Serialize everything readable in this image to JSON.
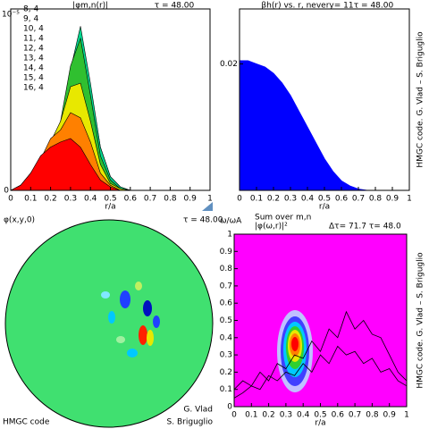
{
  "chart_data": [
    {
      "type": "area",
      "title": "|φm,n(r)|",
      "tau_label": "τ = 48.00",
      "ylabel": "10⁻⁵",
      "xlabel": "r/a",
      "x": [
        0,
        0.05,
        0.1,
        0.15,
        0.2,
        0.25,
        0.3,
        0.35,
        0.4,
        0.45,
        0.5,
        0.55,
        0.6,
        0.65,
        0.7,
        0.75,
        0.8,
        0.85,
        0.9,
        0.95,
        1
      ],
      "xlim": [
        0,
        1
      ],
      "xticks": [
        0,
        0.1,
        0.2,
        0.3,
        0.4,
        0.5,
        0.6,
        0.7,
        0.8,
        0.9,
        1
      ],
      "ylim": [
        0,
        1.05
      ],
      "yticks": [
        0
      ],
      "series": [
        {
          "name": "8, 4",
          "color": "#ff00ff",
          "values": [
            0,
            0.01,
            0.03,
            0.06,
            0.12,
            0.2,
            0.32,
            0.38,
            0.3,
            0.15,
            0.05,
            0.01,
            0,
            0,
            0,
            0,
            0,
            0,
            0,
            0,
            0
          ]
        },
        {
          "name": "9, 4",
          "color": "#8000ff",
          "values": [
            0,
            0.01,
            0.04,
            0.08,
            0.15,
            0.25,
            0.42,
            0.5,
            0.38,
            0.18,
            0.06,
            0.01,
            0,
            0,
            0,
            0,
            0,
            0,
            0,
            0,
            0
          ]
        },
        {
          "name": "10, 4",
          "color": "#0000ff",
          "values": [
            0,
            0.02,
            0.05,
            0.1,
            0.18,
            0.3,
            0.55,
            0.72,
            0.5,
            0.22,
            0.07,
            0.02,
            0,
            0,
            0,
            0,
            0,
            0,
            0,
            0,
            0
          ]
        },
        {
          "name": "11, 4",
          "color": "#00c8ff",
          "values": [
            0,
            0.02,
            0.06,
            0.12,
            0.2,
            0.35,
            0.65,
            0.85,
            0.6,
            0.25,
            0.08,
            0.02,
            0,
            0,
            0,
            0,
            0,
            0,
            0,
            0,
            0
          ]
        },
        {
          "name": "12, 4",
          "color": "#00d890",
          "values": [
            0,
            0.02,
            0.06,
            0.13,
            0.22,
            0.38,
            0.7,
            0.95,
            0.62,
            0.25,
            0.08,
            0.02,
            0,
            0,
            0,
            0,
            0,
            0,
            0,
            0,
            0
          ]
        },
        {
          "name": "13, 4",
          "color": "#30c030",
          "values": [
            0,
            0.02,
            0.07,
            0.14,
            0.25,
            0.4,
            0.72,
            0.88,
            0.55,
            0.2,
            0.06,
            0.01,
            0,
            0,
            0,
            0,
            0,
            0,
            0,
            0,
            0
          ]
        },
        {
          "name": "14, 4",
          "color": "#e8e800",
          "values": [
            0,
            0.02,
            0.08,
            0.15,
            0.28,
            0.4,
            0.6,
            0.62,
            0.4,
            0.15,
            0.04,
            0.01,
            0,
            0,
            0,
            0,
            0,
            0,
            0,
            0,
            0
          ]
        },
        {
          "name": "15, 4",
          "color": "#ff8000",
          "values": [
            0,
            0.03,
            0.1,
            0.18,
            0.3,
            0.35,
            0.45,
            0.42,
            0.28,
            0.1,
            0.03,
            0,
            0,
            0,
            0,
            0,
            0,
            0,
            0,
            0,
            0
          ]
        },
        {
          "name": "16, 4",
          "color": "#ff0000",
          "values": [
            0,
            0.03,
            0.1,
            0.2,
            0.25,
            0.28,
            0.3,
            0.25,
            0.15,
            0.06,
            0.02,
            0,
            0,
            0,
            0,
            0,
            0,
            0,
            0,
            0,
            0
          ]
        }
      ]
    },
    {
      "type": "area",
      "title": "βh(r) vs. r, nevery= 11",
      "tau_label": "τ = 48.00",
      "xlabel": "r/a",
      "credit": "HMGC code. G. Vlad – S. Briguglio",
      "color": "#0000ff",
      "x": [
        0,
        0.05,
        0.1,
        0.15,
        0.2,
        0.25,
        0.3,
        0.35,
        0.4,
        0.45,
        0.5,
        0.55,
        0.6,
        0.65,
        0.7,
        0.75,
        0.8,
        0.85,
        0.9,
        0.95,
        1
      ],
      "values": [
        0.0205,
        0.0205,
        0.02,
        0.0195,
        0.0185,
        0.017,
        0.015,
        0.0125,
        0.01,
        0.0075,
        0.005,
        0.003,
        0.0015,
        0.0007,
        0.0002,
        0,
        0,
        0,
        0,
        0,
        0
      ],
      "xlim": [
        0,
        1
      ],
      "xticks": [
        0,
        0.1,
        0.2,
        0.3,
        0.4,
        0.5,
        0.6,
        0.7,
        0.8,
        0.9,
        1
      ],
      "ylim": [
        0,
        0.0287
      ],
      "yticks": [
        0.02
      ]
    },
    {
      "type": "image",
      "title": "φ(x,y,0)",
      "tau_label": "τ = 48.00",
      "credits": [
        "HMGC code",
        "G. Vlad",
        "S. Briguglio"
      ]
    },
    {
      "type": "line",
      "ylabel": "ω/ωA",
      "subtitle": "Sum over m,n",
      "title": "|φ(ω,r)|²",
      "annotation": "Δτ= 71.7 τ= 48.0",
      "xlabel": "r/a",
      "credit": "HMGC code. G. Vlad – S. Briguglio",
      "background": "#ff00ff",
      "x": [
        0,
        0.05,
        0.1,
        0.15,
        0.2,
        0.25,
        0.3,
        0.35,
        0.4,
        0.45,
        0.5,
        0.55,
        0.6,
        0.65,
        0.7,
        0.75,
        0.8,
        0.85,
        0.9,
        0.95,
        1
      ],
      "xlim": [
        0,
        1
      ],
      "xticks": [
        0,
        0.1,
        0.2,
        0.3,
        0.4,
        0.5,
        0.6,
        0.7,
        0.8,
        0.9,
        1
      ],
      "ylim": [
        0,
        1
      ],
      "yticks": [
        0,
        0.1,
        0.2,
        0.3,
        0.4,
        0.5,
        0.6,
        0.7,
        0.8,
        0.9,
        1
      ],
      "series": [
        {
          "color": "#000000",
          "values": [
            0.1,
            0.15,
            0.12,
            0.2,
            0.15,
            0.25,
            0.22,
            0.3,
            0.28,
            0.38,
            0.32,
            0.45,
            0.4,
            0.55,
            0.45,
            0.5,
            0.42,
            0.4,
            0.3,
            0.2,
            0.15
          ]
        },
        {
          "color": "#000000",
          "values": [
            0.05,
            0.08,
            0.12,
            0.1,
            0.18,
            0.15,
            0.2,
            0.18,
            0.25,
            0.2,
            0.3,
            0.25,
            0.35,
            0.3,
            0.32,
            0.25,
            0.28,
            0.2,
            0.22,
            0.15,
            0.12
          ]
        }
      ]
    }
  ]
}
